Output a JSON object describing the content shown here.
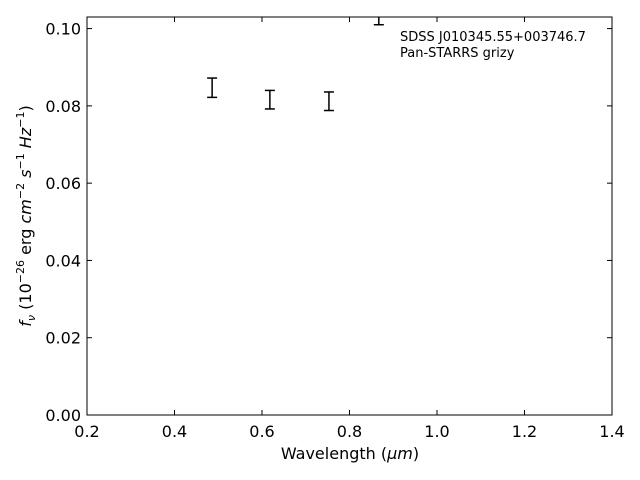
{
  "chart_data": {
    "type": "scatter",
    "xlabel_text": "Wavelength (",
    "xlabel_unit": "μm",
    "xlabel_close": ")",
    "ylabel_sym": "f",
    "ylabel_sub": "ν",
    "ylabel_unit_a": " (10",
    "ylabel_exp_a": "−26",
    "ylabel_unit_b": " erg ",
    "ylabel_cm": "cm",
    "ylabel_exp_b": "−2",
    "ylabel_s": " s",
    "ylabel_exp_c": "−1",
    "ylabel_hz": " Hz",
    "ylabel_exp_d": "−1",
    "ylabel_close": ")",
    "xlim": [
      0.2,
      1.4
    ],
    "ylim": [
      0.0,
      0.103
    ],
    "xticks": [
      0.2,
      0.4,
      0.6,
      0.8,
      1.0,
      1.2,
      1.4
    ],
    "xtick_labels": [
      "0.2",
      "0.4",
      "0.6",
      "0.8",
      "1.0",
      "1.2",
      "1.4"
    ],
    "yticks": [
      0.0,
      0.02,
      0.04,
      0.06,
      0.08,
      0.1
    ],
    "ytick_labels": [
      "0.00",
      "0.02",
      "0.04",
      "0.06",
      "0.08",
      "0.10"
    ],
    "grid": false,
    "annotation_lines": [
      "SDSS J010345.55+003746.7",
      "Pan-STARRS grizy"
    ],
    "annotation_placement": "top-right",
    "series": [
      {
        "points": [
          {
            "x": 0.486,
            "y": 0.0846,
            "err_low": 0.0822,
            "err_high": 0.0872
          },
          {
            "x": 0.618,
            "y": 0.0815,
            "err_low": 0.0792,
            "err_high": 0.084
          },
          {
            "x": 0.753,
            "y": 0.0812,
            "err_low": 0.0788,
            "err_high": 0.0836
          },
          {
            "x": 0.867,
            "y": 0.103,
            "err_low": 0.101,
            "err_high": 0.106
          }
        ]
      }
    ],
    "color": "#000000"
  }
}
